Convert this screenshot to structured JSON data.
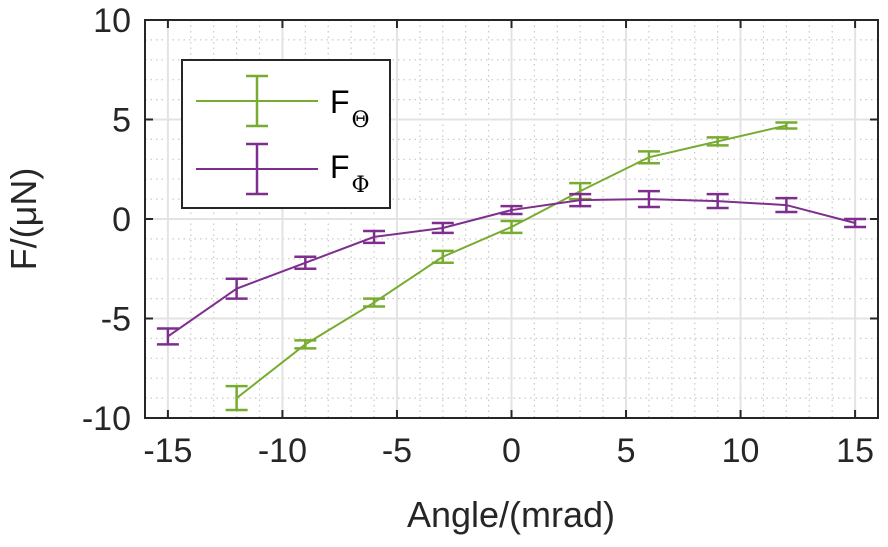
{
  "chart_data": {
    "type": "line",
    "title": "",
    "xlabel": "Angle/(mrad)",
    "ylabel": "F/(μN)",
    "xlim": [
      -16,
      16
    ],
    "ylim": [
      -10,
      10
    ],
    "xticks": [
      -15,
      -10,
      -5,
      0,
      5,
      10,
      15
    ],
    "xtick_labels": [
      "-15",
      "-10",
      "-5",
      "0",
      "5",
      "10",
      "15"
    ],
    "yticks": [
      -10,
      -5,
      0,
      5,
      10
    ],
    "ytick_labels": [
      "-10",
      "-5",
      "0",
      "5",
      "10"
    ],
    "grid": "major solid + minor dotted",
    "legend_position": "top-left",
    "series": [
      {
        "name": "FΘ",
        "legend_main": "F",
        "legend_sub": "Θ",
        "color": "#77ac30",
        "x": [
          -12,
          -9,
          -6,
          -3,
          0,
          3,
          6,
          9,
          12
        ],
        "y": [
          -9.0,
          -6.3,
          -4.2,
          -1.9,
          -0.4,
          1.4,
          3.1,
          3.9,
          4.7
        ],
        "err": [
          0.6,
          0.2,
          0.2,
          0.3,
          0.3,
          0.4,
          0.3,
          0.2,
          0.15
        ]
      },
      {
        "name": "FΦ",
        "legend_main": "F",
        "legend_sub": "Φ",
        "color": "#7e2f8e",
        "x": [
          -15,
          -12,
          -9,
          -6,
          -3,
          0,
          3,
          6,
          9,
          12,
          15
        ],
        "y": [
          -5.9,
          -3.5,
          -2.2,
          -0.9,
          -0.45,
          0.45,
          0.95,
          1.0,
          0.9,
          0.7,
          -0.2
        ],
        "err": [
          0.4,
          0.5,
          0.3,
          0.3,
          0.25,
          0.2,
          0.3,
          0.4,
          0.35,
          0.35,
          0.2
        ]
      }
    ]
  }
}
